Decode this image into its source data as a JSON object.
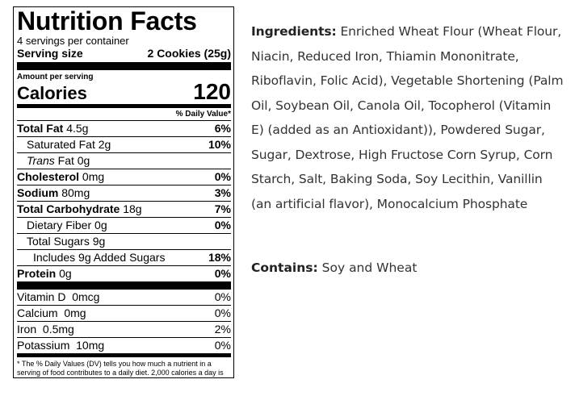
{
  "nutrition": {
    "title": "Nutrition Facts",
    "servings": "4 servings per container",
    "serving_size_label": "Serving size",
    "serving_size_value": "2 Cookies (25g)",
    "amount_per_serving": "Amount per serving",
    "calories_label": "Calories",
    "calories_value": "120",
    "dv_header": "% Daily Value*",
    "rows": [
      {
        "name": "Total Fat",
        "amount": "4.5g",
        "dv": "6%"
      },
      {
        "name": "Saturated Fat",
        "amount": "2g",
        "dv": "10%"
      },
      {
        "name": "Trans",
        "amount": "Fat 0g",
        "dv": ""
      },
      {
        "name": "Cholesterol",
        "amount": "0mg",
        "dv": "0%"
      },
      {
        "name": "Sodium",
        "amount": "80mg",
        "dv": "3%"
      },
      {
        "name": "Total Carbohydrate",
        "amount": "18g",
        "dv": "7%"
      },
      {
        "name": "Dietary Fiber",
        "amount": "0g",
        "dv": "0%"
      },
      {
        "name": "Total Sugars",
        "amount": "9g",
        "dv": ""
      },
      {
        "name": "Includes 9g Added Sugars",
        "amount": "",
        "dv": "18%"
      },
      {
        "name": "Protein",
        "amount": "0g",
        "dv": "0%"
      }
    ],
    "vitamins": [
      {
        "name": "Vitamin D  0mcg",
        "dv": "0%"
      },
      {
        "name": "Calcium  0mg",
        "dv": "0%"
      },
      {
        "name": "Iron  0.5mg",
        "dv": "2%"
      },
      {
        "name": "Potassium  10mg",
        "dv": "0%"
      }
    ],
    "footnote": "* The % Daily Values (DV) tells you how much a nutrient in a serving of food contributes to a daily diet. 2,000 calories a day is used for general nutrition advice."
  },
  "ingredients": {
    "label": "Ingredients:",
    "text": "Enriched Wheat Flour (Wheat Flour, Niacin, Reduced Iron, Thiamin Mononitrate, Riboflavin, Folic Acid), Vegetable Shortening (Palm Oil, Soybean Oil, Canola Oil, Tocopherol (Vitamin E) (added as an Antioxidant)), Powdered Sugar, Sugar, Dextrose, High Fructose Corn Syrup, Corn Starch, Salt, Baking Soda, Soy Lecithin, Vanillin (an artificial flavor), Monocalcium Phosphate"
  },
  "contains": {
    "label": "Contains:",
    "text": "Soy and Wheat"
  }
}
